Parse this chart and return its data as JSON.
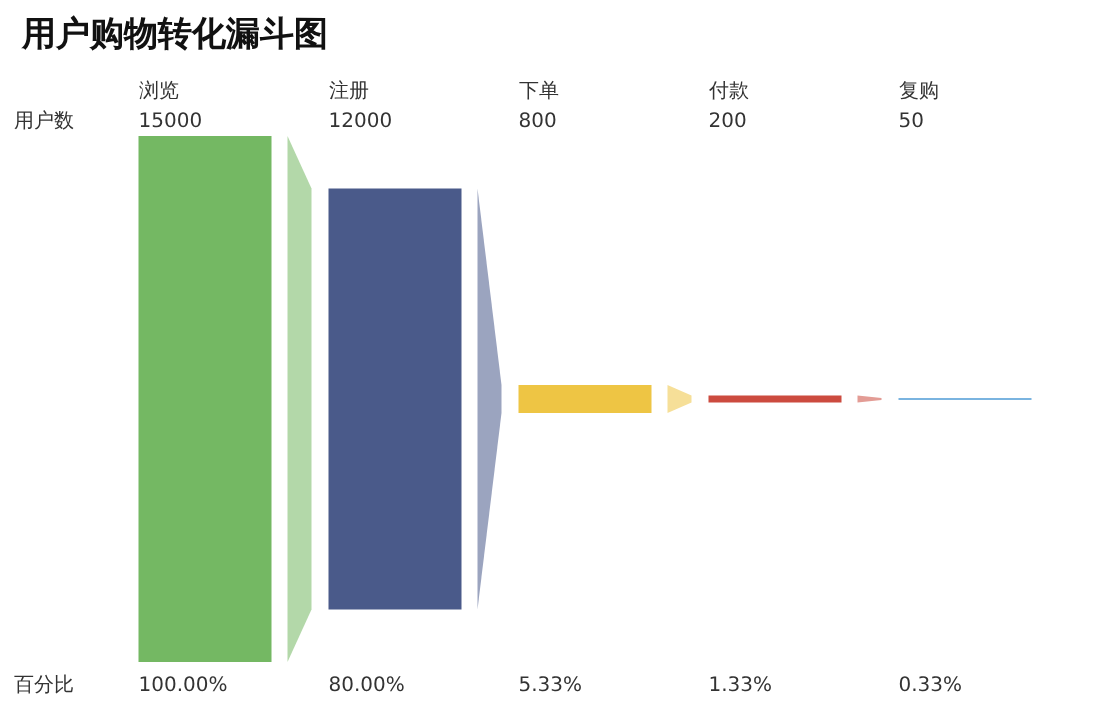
{
  "chart_data": {
    "type": "other",
    "title": "用户购物转化漏斗图",
    "categories": [
      "浏览",
      "注册",
      "下单",
      "付款",
      "复购"
    ],
    "series": [
      {
        "name": "用户数",
        "values": [
          15000,
          12000,
          800,
          200,
          50
        ],
        "colors": [
          "#74b863",
          "#4a5a8a",
          "#eec544",
          "#cc4b3f",
          "#7ab4e0"
        ]
      },
      {
        "name": "百分比",
        "values": [
          100,
          80,
          5.33,
          1.33,
          0.33
        ],
        "value_labels": [
          "100.00%",
          "80.00%",
          "5.33%",
          "1.33%",
          "0.33%"
        ]
      }
    ],
    "data_labels": true,
    "legend": false
  }
}
